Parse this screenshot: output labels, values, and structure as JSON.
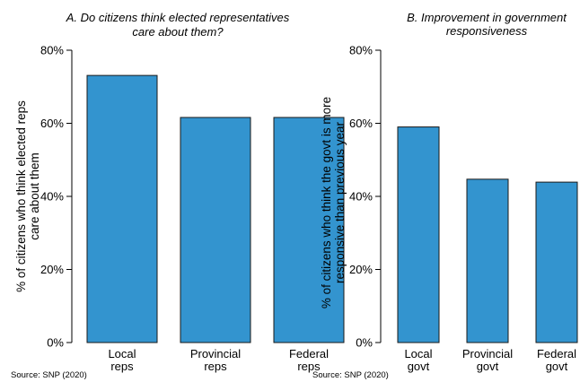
{
  "chart_data": [
    {
      "type": "bar",
      "title_lines": [
        "A. Do citizens think elected representatives",
        "care about them?"
      ],
      "ylabel_lines": [
        "% of citizens who think elected reps",
        "care about them"
      ],
      "categories": [
        [
          "Local",
          "reps"
        ],
        [
          "Provincial",
          "reps"
        ],
        [
          "Federal",
          "reps"
        ]
      ],
      "values": [
        73.1,
        61.6,
        61.6
      ],
      "ylim": [
        0,
        80
      ],
      "yticks": [
        0,
        20,
        40,
        60,
        80
      ],
      "ytick_labels": [
        "0%",
        "20%",
        "40%",
        "60%",
        "80%"
      ],
      "bar_color": "#3394cf",
      "grid": false,
      "source": "Source: SNP (2020)"
    },
    {
      "type": "bar",
      "title_lines": [
        "B. Improvement in government",
        "responsiveness"
      ],
      "ylabel_lines": [
        "% of citizens who think the govt is more",
        "responsive than previous year"
      ],
      "categories": [
        [
          "Local",
          "govt"
        ],
        [
          "Provincial",
          "govt"
        ],
        [
          "Federal",
          "govt"
        ]
      ],
      "values": [
        59.0,
        44.7,
        43.9
      ],
      "ylim": [
        0,
        80
      ],
      "yticks": [
        0,
        20,
        40,
        60,
        80
      ],
      "ytick_labels": [
        "0%",
        "20%",
        "40%",
        "60%",
        "80%"
      ],
      "bar_color": "#3394cf",
      "grid": false,
      "source": "Source: SNP (2020)"
    }
  ]
}
